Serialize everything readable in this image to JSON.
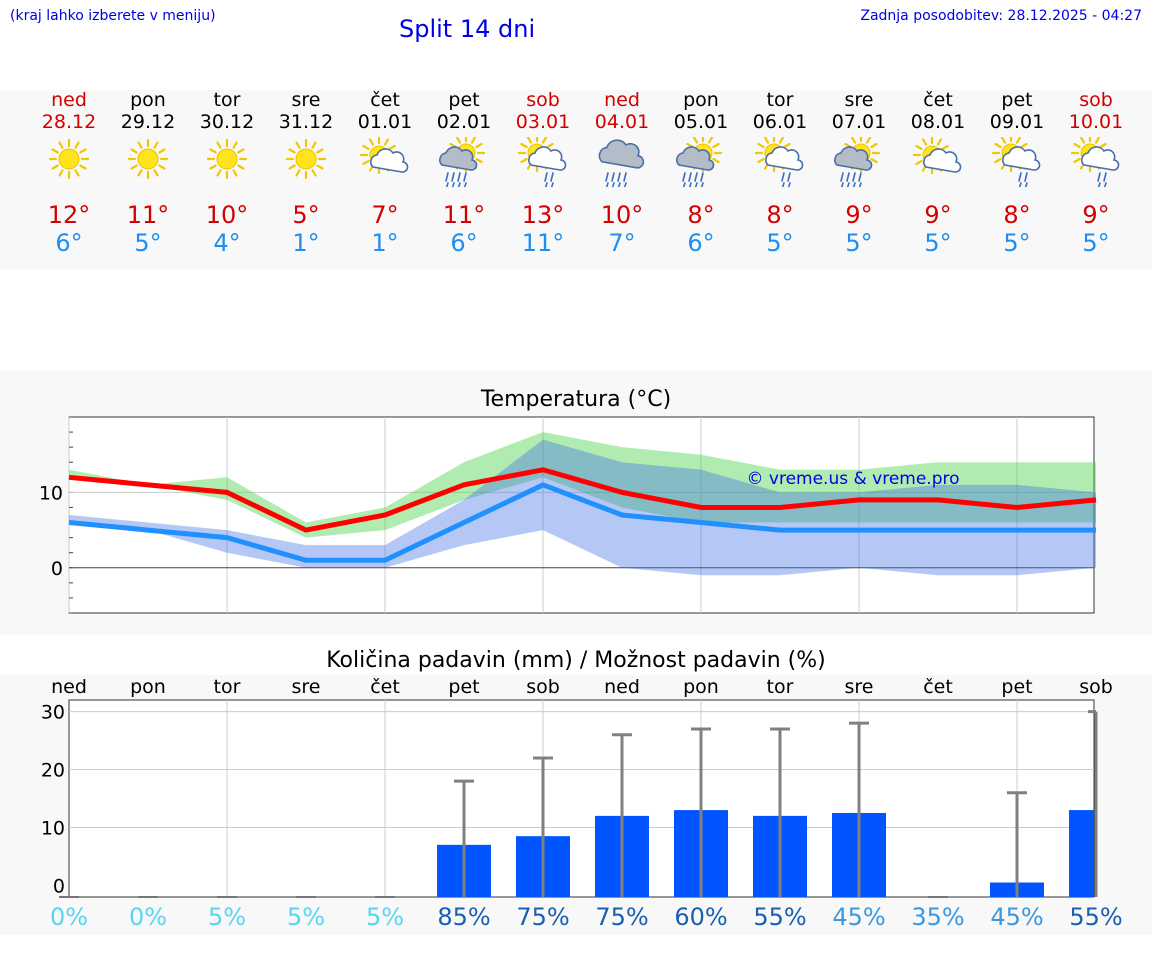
{
  "header": {
    "menu_hint": "(kraj lahko izberete v meniju)",
    "title": "Split 14 dni",
    "updated": "Zadnja posodobitev: 28.12.2025 - 04:27"
  },
  "colors": {
    "weekend": "#d40000",
    "max_line": "#ff0000",
    "min_line": "#2090ff",
    "bar": "#0055ff",
    "watermark": "#0000e6"
  },
  "days": [
    {
      "name": "ned",
      "date": "28.12",
      "weekend": true,
      "icon": "sun-icon",
      "max": "12°",
      "min": "6°"
    },
    {
      "name": "pon",
      "date": "29.12",
      "weekend": false,
      "icon": "sun-icon",
      "max": "11°",
      "min": "5°"
    },
    {
      "name": "tor",
      "date": "30.12",
      "weekend": false,
      "icon": "sun-icon",
      "max": "10°",
      "min": "4°"
    },
    {
      "name": "sre",
      "date": "31.12",
      "weekend": false,
      "icon": "sun-icon",
      "max": "5°",
      "min": "1°"
    },
    {
      "name": "čet",
      "date": "01.01",
      "weekend": false,
      "icon": "sun-cloud-icon",
      "max": "7°",
      "min": "1°"
    },
    {
      "name": "pet",
      "date": "02.01",
      "weekend": false,
      "icon": "sun-cloud-heavy-rain-icon",
      "max": "11°",
      "min": "6°"
    },
    {
      "name": "sob",
      "date": "03.01",
      "weekend": true,
      "icon": "sun-cloud-light-rain-icon",
      "max": "13°",
      "min": "11°"
    },
    {
      "name": "ned",
      "date": "04.01",
      "weekend": true,
      "icon": "cloud-heavy-rain-icon",
      "max": "10°",
      "min": "7°"
    },
    {
      "name": "pon",
      "date": "05.01",
      "weekend": false,
      "icon": "sun-cloud-heavy-rain-icon",
      "max": "8°",
      "min": "6°"
    },
    {
      "name": "tor",
      "date": "06.01",
      "weekend": false,
      "icon": "sun-cloud-light-rain-icon",
      "max": "8°",
      "min": "5°"
    },
    {
      "name": "sre",
      "date": "07.01",
      "weekend": false,
      "icon": "sun-cloud-heavy-rain-icon",
      "max": "9°",
      "min": "5°"
    },
    {
      "name": "čet",
      "date": "08.01",
      "weekend": false,
      "icon": "sun-cloud-icon",
      "max": "9°",
      "min": "5°"
    },
    {
      "name": "pet",
      "date": "09.01",
      "weekend": false,
      "icon": "sun-cloud-light-rain-icon",
      "max": "8°",
      "min": "5°"
    },
    {
      "name": "sob",
      "date": "10.01",
      "weekend": true,
      "icon": "sun-cloud-light-rain-icon",
      "max": "9°",
      "min": "5°"
    }
  ],
  "chart_data": [
    {
      "type": "line",
      "title": "Temperatura (°C)",
      "watermark": "© vreme.us & vreme.pro",
      "ylim": [
        -6,
        20
      ],
      "yticks": [
        0,
        10
      ],
      "grid": true,
      "series": [
        {
          "values": [
            12,
            11,
            10,
            5,
            7,
            11,
            13,
            10,
            8,
            8,
            9,
            9,
            8,
            9
          ],
          "range_low": [
            12,
            11,
            9,
            4,
            5,
            9,
            12,
            8,
            6,
            6,
            6,
            6,
            6,
            6
          ],
          "range_high": [
            13,
            11,
            12,
            6,
            8,
            14,
            18,
            16,
            15,
            13,
            13,
            14,
            14,
            14
          ]
        },
        {
          "values": [
            6,
            5,
            4,
            1,
            1,
            6,
            11,
            7,
            6,
            5,
            5,
            5,
            5,
            5
          ],
          "range_low": [
            6,
            5,
            2,
            0,
            0,
            3,
            5,
            0,
            -1,
            -1,
            0,
            -1,
            -1,
            0
          ],
          "range_high": [
            7,
            6,
            5,
            3,
            3,
            9,
            17,
            14,
            13,
            10,
            10,
            11,
            11,
            10
          ]
        }
      ]
    },
    {
      "type": "bar",
      "title": "Količina padavin (mm) / Možnost padavin (%)",
      "categories": [
        "ned",
        "pon",
        "tor",
        "sre",
        "čet",
        "pet",
        "sob",
        "ned",
        "pon",
        "tor",
        "sre",
        "čet",
        "pet",
        "sob"
      ],
      "ylim": [
        -2,
        32
      ],
      "yticks": [
        0,
        10,
        20,
        30
      ],
      "values": [
        0,
        0,
        0,
        0,
        0,
        7,
        8.5,
        12,
        13,
        12,
        12.5,
        0,
        0.5,
        13
      ],
      "error_high": [
        0,
        0,
        0,
        0,
        0,
        18,
        22,
        26,
        27,
        27,
        28,
        0,
        16,
        30
      ],
      "chance": [
        "0%",
        "0%",
        "5%",
        "5%",
        "5%",
        "85%",
        "75%",
        "75%",
        "60%",
        "55%",
        "45%",
        "35%",
        "45%",
        "55%"
      ],
      "chance_colors": [
        "#5ad4f0",
        "#5ad4f0",
        "#5ad4f0",
        "#5ad4f0",
        "#5ad4f0",
        "#1a5fb0",
        "#1a5fb0",
        "#1a5fb0",
        "#1a5fb0",
        "#1a5fb0",
        "#3a98e0",
        "#3a98e0",
        "#3a98e0",
        "#1a5fb0"
      ]
    }
  ]
}
